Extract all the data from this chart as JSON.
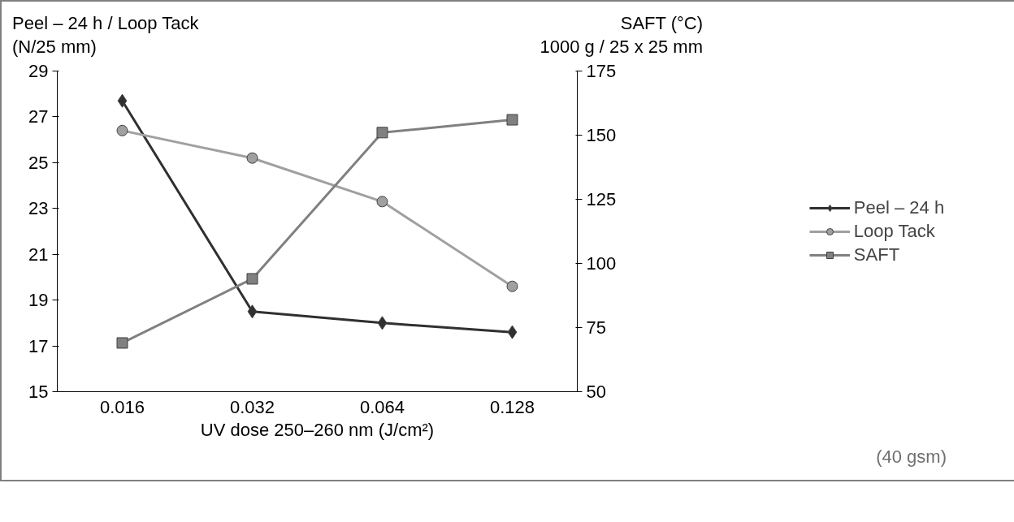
{
  "chart_data": {
    "type": "line",
    "xlabel": "UV dose 250–260 nm (J/cm²)",
    "ylabel": "Peel – 24 h / Loop Tack\n(N/25 mm)",
    "y2label": "SAFT (°C)\n1000 g / 25 x 25 mm",
    "categories": [
      "0.016",
      "0.032",
      "0.064",
      "0.128"
    ],
    "series": [
      {
        "name": "Peel – 24 h",
        "color": "#303030",
        "marker": "diamond",
        "values": [
          27.7,
          18.5,
          18.0,
          17.6
        ]
      },
      {
        "name": "Loop Tack",
        "color": "#a0a0a0",
        "marker": "circle",
        "values": [
          26.4,
          25.2,
          23.3,
          19.6
        ]
      },
      {
        "name": "SAFT",
        "color": "#808080",
        "marker": "square",
        "axis": "y2",
        "values": [
          69,
          94,
          151,
          156
        ]
      }
    ],
    "ylim": [
      15,
      29
    ],
    "yticks": [
      15,
      17,
      19,
      21,
      23,
      25,
      27,
      29
    ],
    "y2lim": [
      50,
      175
    ],
    "y2ticks": [
      50,
      75,
      100,
      125,
      150,
      175
    ],
    "grid": false,
    "legend": "right",
    "line_style": "solid",
    "annotations": [
      "(40 gsm)"
    ]
  }
}
